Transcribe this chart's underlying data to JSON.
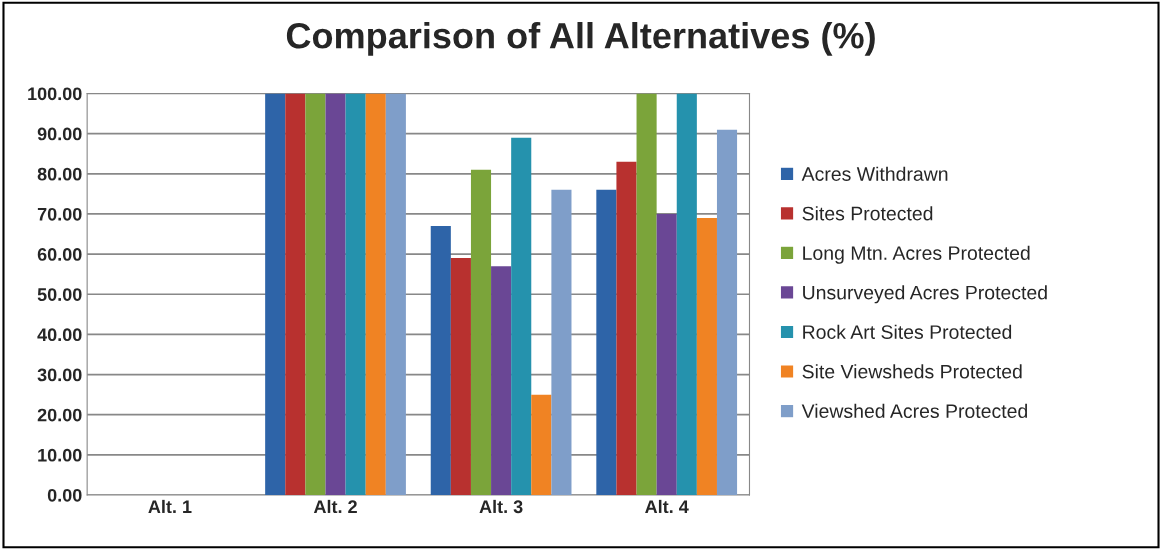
{
  "chart_data": {
    "type": "bar",
    "title": "Comparison of All Alternatives (%)",
    "categories": [
      "Alt. 1",
      "Alt. 2",
      "Alt. 3",
      "Alt. 4"
    ],
    "series": [
      {
        "name": "Acres Withdrawn",
        "color": "#2e64a8",
        "values": [
          0,
          100,
          67,
          76
        ]
      },
      {
        "name": "Sites Protected",
        "color": "#b8312f",
        "values": [
          0,
          100,
          59,
          83
        ]
      },
      {
        "name": "Long Mtn. Acres Protected",
        "color": "#7ba43a",
        "values": [
          0,
          100,
          81,
          100
        ]
      },
      {
        "name": "Unsurveyed Acres Protected",
        "color": "#6a4795",
        "values": [
          0,
          100,
          57,
          70
        ]
      },
      {
        "name": "Rock Art Sites Protected",
        "color": "#2592ad",
        "values": [
          0,
          100,
          89,
          100
        ]
      },
      {
        "name": "Site Viewsheds Protected",
        "color": "#f08323",
        "values": [
          0,
          100,
          25,
          69
        ]
      },
      {
        "name": "Viewshed Acres Protected",
        "color": "#7f9ec9",
        "values": [
          0,
          100,
          76,
          91
        ]
      }
    ],
    "ylim": [
      0,
      100
    ],
    "yticks": [
      {
        "value": 0,
        "label": "0.00"
      },
      {
        "value": 10,
        "label": "10.00"
      },
      {
        "value": 20,
        "label": "20.00"
      },
      {
        "value": 30,
        "label": "30.00"
      },
      {
        "value": 40,
        "label": "40.00"
      },
      {
        "value": 50,
        "label": "50.00"
      },
      {
        "value": 60,
        "label": "60.00"
      },
      {
        "value": 70,
        "label": "70.00"
      },
      {
        "value": 80,
        "label": "80.00"
      },
      {
        "value": 90,
        "label": "90.00"
      },
      {
        "value": 100,
        "label": "100.00"
      }
    ],
    "grid": "y",
    "legend": "right"
  }
}
